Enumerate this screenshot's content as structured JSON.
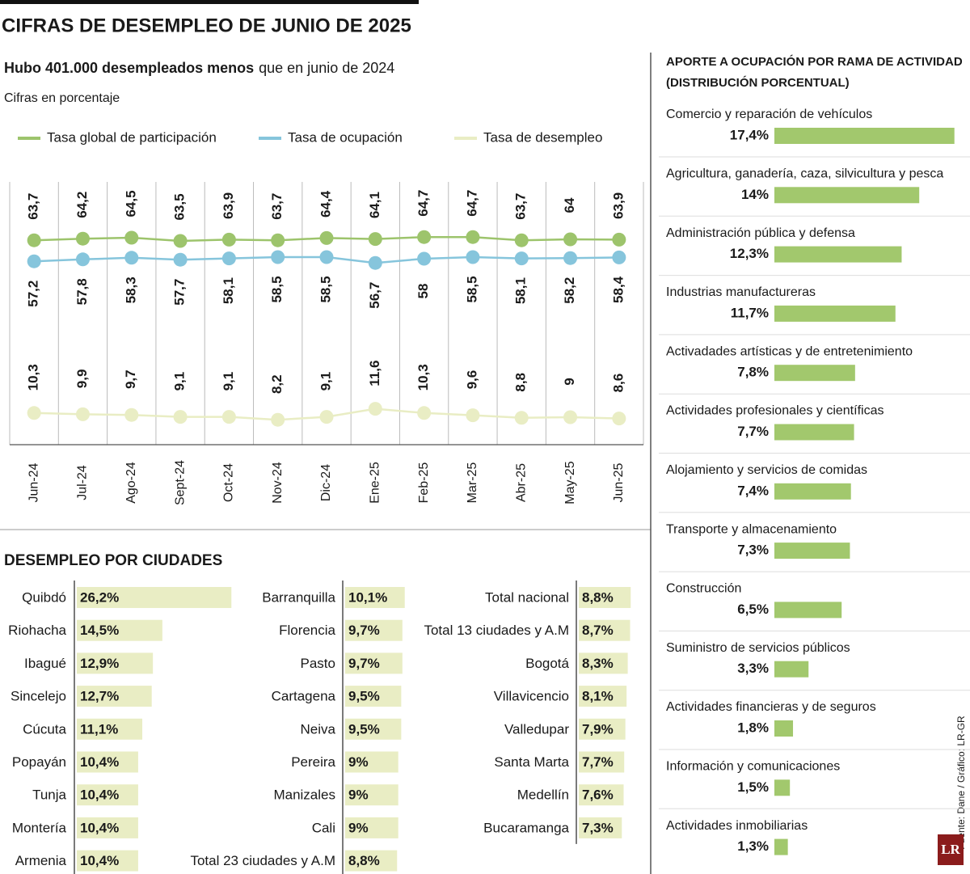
{
  "header": {
    "title": "CIFRAS DE DESEMPLEO DE JUNIO DE 2025",
    "headline_bold": "Hubo 401.000 desempleados menos",
    "headline_rest": "que en junio de 2024",
    "note": "Cifras en porcentaje"
  },
  "source": "Fuente: Dane / Gráfico: LR-GR",
  "logo": "LR",
  "chart_data": [
    {
      "type": "line",
      "categories": [
        "Jun-24",
        "Jul-24",
        "Ago-24",
        "Sept-24",
        "Oct-24",
        "Nov-24",
        "Dic-24",
        "Ene-25",
        "Feb-25",
        "Mar-25",
        "Abr-25",
        "May-25",
        "Jun-25"
      ],
      "series": [
        {
          "name": "Tasa global de participación",
          "color": "#9dc46c",
          "values": [
            63.7,
            64.2,
            64.5,
            63.5,
            63.9,
            63.7,
            64.4,
            64.1,
            64.7,
            64.7,
            63.7,
            64,
            63.9
          ],
          "value_labels": [
            "63,7",
            "64,2",
            "64,5",
            "63,5",
            "63,9",
            "63,7",
            "64,4",
            "64,1",
            "64,7",
            "64,7",
            "63,7",
            "64",
            "63,9"
          ]
        },
        {
          "name": "Tasa de ocupación",
          "color": "#86c5dc",
          "values": [
            57.2,
            57.8,
            58.3,
            57.7,
            58.1,
            58.5,
            58.5,
            56.7,
            58,
            58.5,
            58.1,
            58.2,
            58.4
          ],
          "value_labels": [
            "57,2",
            "57,8",
            "58,3",
            "57,7",
            "58,1",
            "58,5",
            "58,5",
            "56,7",
            "58",
            "58,5",
            "58,1",
            "58,2",
            "58,4"
          ]
        },
        {
          "name": "Tasa de desempleo",
          "color": "#e9edc4",
          "values": [
            10.3,
            9.9,
            9.7,
            9.1,
            9.1,
            8.2,
            9.1,
            11.6,
            10.3,
            9.6,
            8.8,
            9,
            8.6
          ],
          "value_labels": [
            "10,3",
            "9,9",
            "9,7",
            "9,1",
            "9,1",
            "8,2",
            "9,1",
            "11,6",
            "10,3",
            "9,6",
            "8,8",
            "9",
            "8,6"
          ]
        }
      ]
    },
    {
      "type": "bar",
      "orientation": "horizontal",
      "title": "DESEMPLEO POR CIUDADES",
      "color": "#e9edc4",
      "categories": [
        "Quibdó",
        "Riohacha",
        "Ibagué",
        "Sincelejo",
        "Cúcuta",
        "Popayán",
        "Tunja",
        "Montería",
        "Armenia",
        "Barranquilla",
        "Florencia",
        "Pasto",
        "Cartagena",
        "Neiva",
        "Pereira",
        "Manizales",
        "Cali",
        "Total 23 ciudades y A.M",
        "Total nacional",
        "Total 13 ciudades y A.M",
        "Bogotá",
        "Villavicencio",
        "Valledupar",
        "Santa Marta",
        "Medellín",
        "Bucaramanga"
      ],
      "values": [
        26.2,
        14.5,
        12.9,
        12.7,
        11.1,
        10.4,
        10.4,
        10.4,
        10.4,
        10.1,
        9.7,
        9.7,
        9.5,
        9.5,
        9,
        9,
        9,
        8.8,
        8.8,
        8.7,
        8.3,
        8.1,
        7.9,
        7.7,
        7.6,
        7.3
      ],
      "value_labels": [
        "26,2%",
        "14,5%",
        "12,9%",
        "12,7%",
        "11,1%",
        "10,4%",
        "10,4%",
        "10,4%",
        "10,4%",
        "10,1%",
        "9,7%",
        "9,7%",
        "9,5%",
        "9,5%",
        "9%",
        "9%",
        "9%",
        "8,8%",
        "8,8%",
        "8,7%",
        "8,3%",
        "8,1%",
        "7,9%",
        "7,7%",
        "7,6%",
        "7,3%"
      ]
    },
    {
      "type": "bar",
      "orientation": "horizontal",
      "title": "APORTE A OCUPACIÓN POR RAMA DE ACTIVIDAD (DISTRIBUCIÓN PORCENTUAL)",
      "color": "#a2c86d",
      "categories": [
        "Comercio y reparación de vehículos",
        "Agricultura, ganadería, caza, silvicultura y pesca",
        "Administración pública y defensa",
        "Industrias manufactureras",
        "Activadades artísticas y de entretenimiento",
        "Actividades profesionales y científicas",
        "Alojamiento y servicios de comidas",
        "Transporte y almacenamiento",
        "Construcción",
        "Suministro de servicios públicos",
        "Actividades financieras y de seguros",
        "Información y comunicaciones",
        "Actividades inmobiliarias"
      ],
      "values": [
        17.4,
        14,
        12.3,
        11.7,
        7.8,
        7.7,
        7.4,
        7.3,
        6.5,
        3.3,
        1.8,
        1.5,
        1.3
      ],
      "value_labels": [
        "17,4%",
        "14%",
        "12,3%",
        "11,7%",
        "7,8%",
        "7,7%",
        "7,4%",
        "7,3%",
        "6,5%",
        "3,3%",
        "1,8%",
        "1,5%",
        "1,3%"
      ]
    }
  ]
}
